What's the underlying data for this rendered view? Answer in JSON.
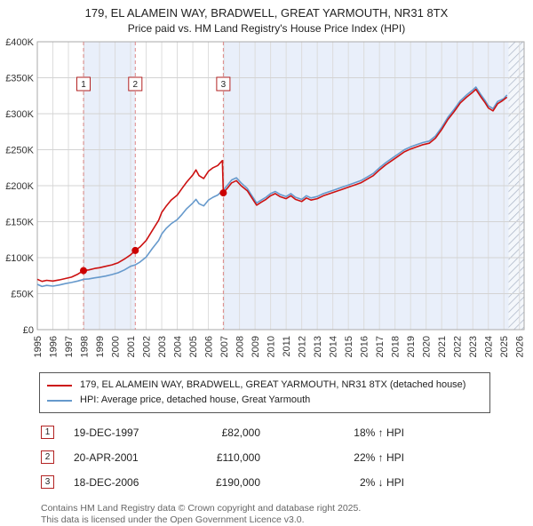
{
  "header": {
    "title": "179, EL ALAMEIN WAY, BRADWELL, GREAT YARMOUTH, NR31 8TX",
    "subtitle": "Price paid vs. HM Land Registry's House Price Index (HPI)"
  },
  "chart_data": {
    "type": "line",
    "title": "179, EL ALAMEIN WAY, BRADWELL, GREAT YARMOUTH, NR31 8TX",
    "subtitle": "Price paid vs. HM Land Registry's House Price Index (HPI)",
    "xlim": [
      1995,
      2026.3
    ],
    "ylim": [
      0,
      400000
    ],
    "grid": true,
    "y_ticks": [
      [
        400000,
        "£400K"
      ],
      [
        350000,
        "£350K"
      ],
      [
        300000,
        "£300K"
      ],
      [
        250000,
        "£250K"
      ],
      [
        200000,
        "£200K"
      ],
      [
        150000,
        "£150K"
      ],
      [
        100000,
        "£100K"
      ],
      [
        50000,
        "£50K"
      ],
      [
        0,
        "£0"
      ]
    ],
    "x_ticks": [
      1995,
      1996,
      1997,
      1998,
      1999,
      2000,
      2001,
      2002,
      2003,
      2004,
      2005,
      2006,
      2007,
      2008,
      2009,
      2010,
      2011,
      2012,
      2013,
      2014,
      2015,
      2016,
      2017,
      2018,
      2019,
      2020,
      2021,
      2022,
      2023,
      2024,
      2025,
      2026
    ],
    "colors": {
      "price": "#cc1111",
      "hpi": "#6699cc",
      "band": "#e9effa",
      "sale_line": "#dd8888",
      "grid_v": "#dcdcdc",
      "grid_h": "#d3d3d3",
      "border": "#aaaaaa",
      "hatch": "#a8b2c4",
      "marker": "#cc0000",
      "box_border": "#b22222"
    },
    "bands": [
      {
        "from": 1997.97,
        "to": 2001.3
      },
      {
        "from": 2006.96,
        "to": 2025.3
      }
    ],
    "hatch_from": 2025.3,
    "sales": [
      {
        "n": "1",
        "year": 1997.97,
        "value": 82000
      },
      {
        "n": "2",
        "year": 2001.3,
        "value": 110000
      },
      {
        "n": "3",
        "year": 2006.96,
        "value": 190000
      }
    ],
    "series": [
      {
        "name": "179, EL ALAMEIN WAY, BRADWELL, GREAT YARMOUTH, NR31 8TX (detached house)",
        "color": "#cc1111",
        "points": [
          [
            1995.0,
            70000
          ],
          [
            1995.3,
            67000
          ],
          [
            1995.6,
            68500
          ],
          [
            1996.0,
            67500
          ],
          [
            1996.4,
            69000
          ],
          [
            1996.8,
            71000
          ],
          [
            1997.2,
            73000
          ],
          [
            1997.6,
            77000
          ],
          [
            1997.97,
            82000
          ],
          [
            1998.3,
            83000
          ],
          [
            1998.7,
            85000
          ],
          [
            1999.0,
            86000
          ],
          [
            1999.4,
            88000
          ],
          [
            1999.8,
            90000
          ],
          [
            2000.2,
            93000
          ],
          [
            2000.6,
            98000
          ],
          [
            2001.0,
            104000
          ],
          [
            2001.3,
            110000
          ],
          [
            2001.6,
            115000
          ],
          [
            2002.0,
            124000
          ],
          [
            2002.4,
            138000
          ],
          [
            2002.8,
            152000
          ],
          [
            2003.0,
            163000
          ],
          [
            2003.3,
            172000
          ],
          [
            2003.6,
            180000
          ],
          [
            2004.0,
            187000
          ],
          [
            2004.3,
            196000
          ],
          [
            2004.6,
            205000
          ],
          [
            2005.0,
            215000
          ],
          [
            2005.2,
            222000
          ],
          [
            2005.4,
            214000
          ],
          [
            2005.7,
            210000
          ],
          [
            2006.0,
            220000
          ],
          [
            2006.3,
            225000
          ],
          [
            2006.6,
            228000
          ],
          [
            2006.9,
            235000
          ],
          [
            2006.96,
            190000
          ],
          [
            2007.2,
            196000
          ],
          [
            2007.5,
            204000
          ],
          [
            2007.8,
            207000
          ],
          [
            2008.1,
            200000
          ],
          [
            2008.5,
            193000
          ],
          [
            2008.8,
            183000
          ],
          [
            2009.1,
            173000
          ],
          [
            2009.4,
            177000
          ],
          [
            2009.7,
            181000
          ],
          [
            2010.0,
            186000
          ],
          [
            2010.3,
            189000
          ],
          [
            2010.6,
            185000
          ],
          [
            2011.0,
            182000
          ],
          [
            2011.3,
            186000
          ],
          [
            2011.6,
            181000
          ],
          [
            2012.0,
            178000
          ],
          [
            2012.3,
            183000
          ],
          [
            2012.6,
            180000
          ],
          [
            2013.0,
            182000
          ],
          [
            2013.4,
            186000
          ],
          [
            2013.8,
            189000
          ],
          [
            2014.2,
            192000
          ],
          [
            2014.6,
            195000
          ],
          [
            2015.0,
            198000
          ],
          [
            2015.4,
            201000
          ],
          [
            2015.8,
            204000
          ],
          [
            2016.2,
            209000
          ],
          [
            2016.6,
            214000
          ],
          [
            2017.0,
            222000
          ],
          [
            2017.4,
            229000
          ],
          [
            2017.8,
            235000
          ],
          [
            2018.2,
            241000
          ],
          [
            2018.6,
            247000
          ],
          [
            2019.0,
            251000
          ],
          [
            2019.4,
            254000
          ],
          [
            2019.8,
            257000
          ],
          [
            2020.2,
            259000
          ],
          [
            2020.6,
            266000
          ],
          [
            2021.0,
            278000
          ],
          [
            2021.4,
            292000
          ],
          [
            2021.8,
            303000
          ],
          [
            2022.2,
            315000
          ],
          [
            2022.6,
            323000
          ],
          [
            2023.0,
            330000
          ],
          [
            2023.2,
            334000
          ],
          [
            2023.5,
            324000
          ],
          [
            2023.8,
            315000
          ],
          [
            2024.0,
            308000
          ],
          [
            2024.3,
            304000
          ],
          [
            2024.6,
            314000
          ],
          [
            2024.9,
            318000
          ],
          [
            2025.2,
            323000
          ]
        ]
      },
      {
        "name": "HPI: Average price, detached house, Great Yarmouth",
        "color": "#6699cc",
        "points": [
          [
            1995.0,
            63000
          ],
          [
            1995.3,
            60000
          ],
          [
            1995.6,
            61500
          ],
          [
            1996.0,
            60500
          ],
          [
            1996.4,
            62000
          ],
          [
            1996.8,
            64000
          ],
          [
            1997.2,
            65500
          ],
          [
            1997.6,
            67500
          ],
          [
            1998.0,
            70000
          ],
          [
            1998.3,
            70500
          ],
          [
            1998.7,
            72000
          ],
          [
            1999.0,
            73000
          ],
          [
            1999.4,
            74500
          ],
          [
            1999.8,
            76500
          ],
          [
            2000.2,
            79000
          ],
          [
            2000.6,
            83000
          ],
          [
            2001.0,
            88000
          ],
          [
            2001.3,
            90000
          ],
          [
            2001.6,
            94000
          ],
          [
            2002.0,
            101000
          ],
          [
            2002.4,
            113000
          ],
          [
            2002.8,
            124000
          ],
          [
            2003.0,
            133000
          ],
          [
            2003.3,
            141000
          ],
          [
            2003.6,
            147000
          ],
          [
            2004.0,
            153000
          ],
          [
            2004.3,
            160000
          ],
          [
            2004.6,
            168000
          ],
          [
            2005.0,
            176000
          ],
          [
            2005.2,
            181000
          ],
          [
            2005.4,
            175000
          ],
          [
            2005.7,
            172000
          ],
          [
            2006.0,
            180000
          ],
          [
            2006.3,
            184000
          ],
          [
            2006.6,
            187000
          ],
          [
            2006.9,
            193000
          ],
          [
            2007.0,
            195000
          ],
          [
            2007.2,
            200000
          ],
          [
            2007.5,
            208000
          ],
          [
            2007.8,
            211000
          ],
          [
            2008.1,
            204000
          ],
          [
            2008.5,
            196000
          ],
          [
            2008.8,
            186000
          ],
          [
            2009.1,
            176000
          ],
          [
            2009.4,
            180000
          ],
          [
            2009.7,
            184000
          ],
          [
            2010.0,
            189000
          ],
          [
            2010.3,
            192000
          ],
          [
            2010.6,
            188000
          ],
          [
            2011.0,
            185000
          ],
          [
            2011.3,
            189000
          ],
          [
            2011.6,
            184000
          ],
          [
            2012.0,
            181000
          ],
          [
            2012.3,
            186000
          ],
          [
            2012.6,
            183000
          ],
          [
            2013.0,
            185000
          ],
          [
            2013.4,
            189000
          ],
          [
            2013.8,
            192000
          ],
          [
            2014.2,
            195000
          ],
          [
            2014.6,
            198000
          ],
          [
            2015.0,
            201000
          ],
          [
            2015.4,
            204000
          ],
          [
            2015.8,
            207000
          ],
          [
            2016.2,
            212000
          ],
          [
            2016.6,
            217000
          ],
          [
            2017.0,
            225000
          ],
          [
            2017.4,
            232000
          ],
          [
            2017.8,
            238000
          ],
          [
            2018.2,
            244000
          ],
          [
            2018.6,
            250000
          ],
          [
            2019.0,
            254000
          ],
          [
            2019.4,
            257000
          ],
          [
            2019.8,
            260000
          ],
          [
            2020.2,
            262000
          ],
          [
            2020.6,
            269000
          ],
          [
            2021.0,
            281000
          ],
          [
            2021.4,
            295000
          ],
          [
            2021.8,
            306000
          ],
          [
            2022.2,
            318000
          ],
          [
            2022.6,
            326000
          ],
          [
            2023.0,
            333000
          ],
          [
            2023.2,
            337000
          ],
          [
            2023.5,
            327000
          ],
          [
            2023.8,
            318000
          ],
          [
            2024.0,
            311000
          ],
          [
            2024.3,
            307000
          ],
          [
            2024.6,
            317000
          ],
          [
            2025.0,
            321000
          ],
          [
            2025.2,
            326000
          ]
        ]
      }
    ]
  },
  "legend": {
    "items": [
      {
        "label": "179, EL ALAMEIN WAY, BRADWELL, GREAT YARMOUTH, NR31 8TX (detached house)",
        "color": "#cc1111"
      },
      {
        "label": "HPI: Average price, detached house, Great Yarmouth",
        "color": "#6699cc"
      }
    ]
  },
  "table": {
    "rows": [
      {
        "num": "1",
        "date": "19-DEC-1997",
        "price": "£82,000",
        "hpi": "18% ↑ HPI"
      },
      {
        "num": "2",
        "date": "20-APR-2001",
        "price": "£110,000",
        "hpi": "22% ↑ HPI"
      },
      {
        "num": "3",
        "date": "18-DEC-2006",
        "price": "£190,000",
        "hpi": "2% ↓ HPI"
      }
    ]
  },
  "footer": {
    "line1": "Contains HM Land Registry data © Crown copyright and database right 2025.",
    "line2": "This data is licensed under the Open Government Licence v3.0."
  }
}
